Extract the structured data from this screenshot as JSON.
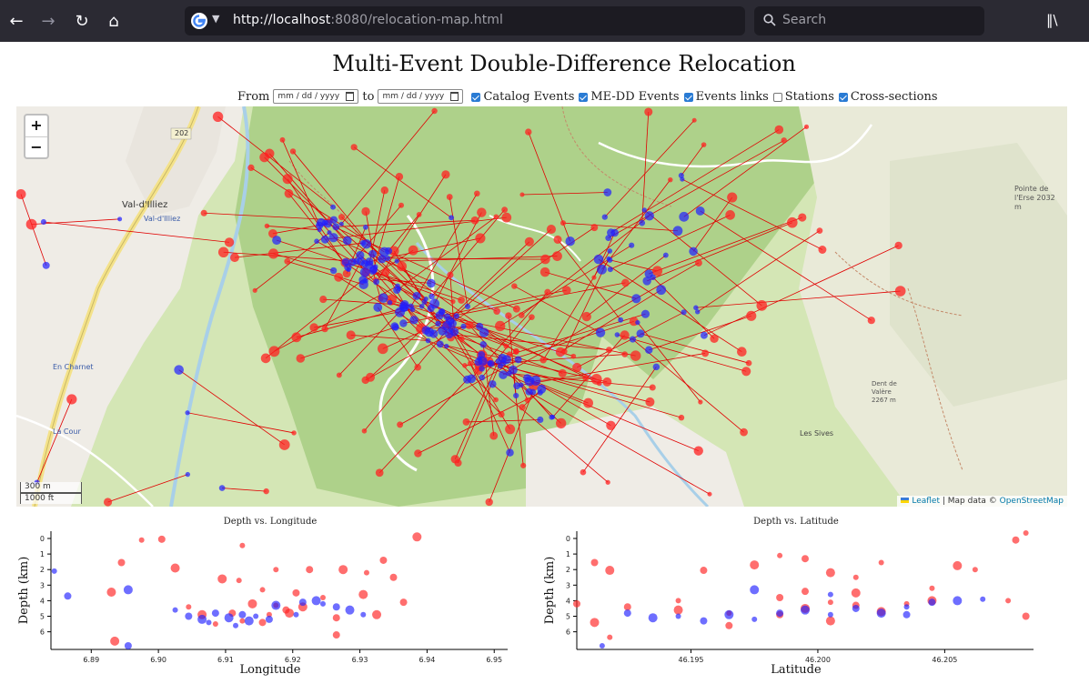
{
  "browser": {
    "url_host": "http://localhost",
    "url_rest": ":8080/relocation-map.html",
    "search_placeholder": "Search"
  },
  "page": {
    "title": "Multi-Event Double-Difference Relocation",
    "from_label": "From",
    "to_label": "to",
    "date_placeholder": "mm / dd / yyyy",
    "checkboxes": [
      {
        "label": "Catalog Events",
        "checked": true
      },
      {
        "label": "ME-DD Events",
        "checked": true
      },
      {
        "label": "Events links",
        "checked": true
      },
      {
        "label": "Stations",
        "checked": false
      },
      {
        "label": "Cross-sections",
        "checked": true
      }
    ]
  },
  "map": {
    "zoom_in": "+",
    "zoom_out": "−",
    "scale_m": "300 m",
    "scale_ft": "1000 ft",
    "attribution_leaflet": "Leaflet",
    "attribution_text": " | Map data © ",
    "attribution_osm": "OpenStreetMap",
    "place_labels": [
      "Val-d'Illiez",
      "Val-d'Illiez",
      "En Charnet",
      "La Cour",
      "Les Sives",
      "Pointe de l'Erse 2032 m",
      "Dent de Valère 2267 m",
      "202"
    ]
  },
  "colors": {
    "catalog": "#ff2020",
    "medd": "#2020ff",
    "link": "#e00000"
  },
  "chart_data": [
    {
      "type": "scatter",
      "title": "Depth vs. Longitude",
      "xlabel": "Longitude",
      "ylabel": "Depth (km)",
      "xlim": [
        6.884,
        6.952
      ],
      "ylim": [
        0,
        6.9
      ],
      "xticks": [
        "6.89",
        "6.90",
        "6.91",
        "6.92",
        "6.93",
        "6.94",
        "6.95"
      ],
      "yticks": [
        "0",
        "1",
        "2",
        "3",
        "4",
        "5",
        "6"
      ],
      "series": [
        {
          "color": "#ff2020",
          "points": [
            [
              6.8975,
              0.1
            ],
            [
              6.9005,
              0.05
            ],
            [
              6.9385,
              -0.1
            ],
            [
              6.9125,
              0.45
            ],
            [
              6.9335,
              1.4
            ],
            [
              6.9025,
              1.9
            ],
            [
              6.9175,
              2.0
            ],
            [
              6.9225,
              2.0
            ],
            [
              6.9275,
              2.0
            ],
            [
              6.931,
              2.2
            ],
            [
              6.935,
              2.5
            ],
            [
              6.9095,
              2.6
            ],
            [
              6.912,
              2.7
            ],
            [
              6.8945,
              1.55
            ],
            [
              6.893,
              3.45
            ],
            [
              6.9155,
              3.3
            ],
            [
              6.9205,
              3.5
            ],
            [
              6.9305,
              3.6
            ],
            [
              6.9245,
              3.8
            ],
            [
              6.9365,
              4.1
            ],
            [
              6.914,
              4.2
            ],
            [
              6.9175,
              4.3
            ],
            [
              6.919,
              4.6
            ],
            [
              6.9215,
              4.4
            ],
            [
              6.9165,
              4.9
            ],
            [
              6.911,
              4.8
            ],
            [
              6.9065,
              4.9
            ],
            [
              6.9045,
              4.4
            ],
            [
              6.9265,
              5.1
            ],
            [
              6.9325,
              4.9
            ],
            [
              6.9125,
              5.3
            ],
            [
              6.9155,
              5.4
            ],
            [
              6.9195,
              4.8
            ],
            [
              6.9085,
              5.5
            ],
            [
              6.9265,
              6.2
            ],
            [
              6.8935,
              6.6
            ]
          ]
        },
        {
          "color": "#2020ff",
          "points": [
            [
              6.8845,
              2.1
            ],
            [
              6.8865,
              3.7
            ],
            [
              6.8955,
              3.3
            ],
            [
              6.9025,
              4.6
            ],
            [
              6.9045,
              5.0
            ],
            [
              6.9065,
              5.2
            ],
            [
              6.9075,
              5.4
            ],
            [
              6.9085,
              4.8
            ],
            [
              6.9105,
              5.1
            ],
            [
              6.9115,
              5.6
            ],
            [
              6.9125,
              4.9
            ],
            [
              6.9135,
              5.3
            ],
            [
              6.9145,
              5.0
            ],
            [
              6.9165,
              5.2
            ],
            [
              6.9175,
              4.3
            ],
            [
              6.9205,
              4.9
            ],
            [
              6.9215,
              4.1
            ],
            [
              6.9235,
              4.0
            ],
            [
              6.9245,
              4.2
            ],
            [
              6.9265,
              4.4
            ],
            [
              6.9285,
              4.6
            ],
            [
              6.9305,
              4.9
            ],
            [
              6.8955,
              6.9
            ]
          ]
        }
      ]
    },
    {
      "type": "scatter",
      "title": "Depth vs. Latitude",
      "xlabel": "Latitude",
      "ylabel": "Depth (km)",
      "xlim": [
        46.1905,
        46.2085
      ],
      "ylim": [
        0,
        6.9
      ],
      "xticks": [
        "46.195",
        "46.200",
        "46.205"
      ],
      "yticks": [
        "0",
        "1",
        "2",
        "3",
        "4",
        "5",
        "6"
      ],
      "series": [
        {
          "color": "#ff2020",
          "points": [
            [
              46.2082,
              -0.35
            ],
            [
              46.2078,
              0.1
            ],
            [
              46.2055,
              1.75
            ],
            [
              46.2062,
              2.0
            ],
            [
              46.1912,
              1.55
            ],
            [
              46.1918,
              2.05
            ],
            [
              46.1985,
              1.1
            ],
            [
              46.1995,
              1.3
            ],
            [
              46.1975,
              1.7
            ],
            [
              46.2025,
              1.55
            ],
            [
              46.1955,
              2.05
            ],
            [
              46.2005,
              2.2
            ],
            [
              46.2015,
              2.5
            ],
            [
              46.1925,
              4.4
            ],
            [
              46.1945,
              4.6
            ],
            [
              46.1965,
              4.8
            ],
            [
              46.1985,
              4.9
            ],
            [
              46.1995,
              4.5
            ],
            [
              46.2005,
              4.1
            ],
            [
              46.2015,
              4.3
            ],
            [
              46.2025,
              4.7
            ],
            [
              46.2035,
              4.2
            ],
            [
              46.1905,
              4.2
            ],
            [
              46.2045,
              4.0
            ],
            [
              46.2075,
              4.0
            ],
            [
              46.2082,
              5.0
            ],
            [
              46.1912,
              5.4
            ],
            [
              46.1918,
              6.35
            ],
            [
              46.1965,
              5.6
            ],
            [
              46.2005,
              5.3
            ],
            [
              46.2045,
              3.2
            ],
            [
              46.1995,
              3.4
            ],
            [
              46.2015,
              3.5
            ],
            [
              46.1945,
              4.0
            ],
            [
              46.1985,
              3.8
            ]
          ]
        },
        {
          "color": "#2020ff",
          "points": [
            [
              46.1915,
              6.9
            ],
            [
              46.1925,
              4.8
            ],
            [
              46.1935,
              5.1
            ],
            [
              46.1945,
              5.0
            ],
            [
              46.1955,
              5.3
            ],
            [
              46.1965,
              4.9
            ],
            [
              46.1975,
              5.2
            ],
            [
              46.1985,
              4.8
            ],
            [
              46.1995,
              4.6
            ],
            [
              46.2005,
              4.9
            ],
            [
              46.2015,
              4.5
            ],
            [
              46.2025,
              4.8
            ],
            [
              46.2035,
              4.4
            ],
            [
              46.2045,
              4.1
            ],
            [
              46.2055,
              4.0
            ],
            [
              46.2065,
              3.9
            ],
            [
              46.2035,
              4.9
            ],
            [
              46.1975,
              3.3
            ],
            [
              46.2005,
              3.6
            ]
          ]
        }
      ]
    }
  ]
}
